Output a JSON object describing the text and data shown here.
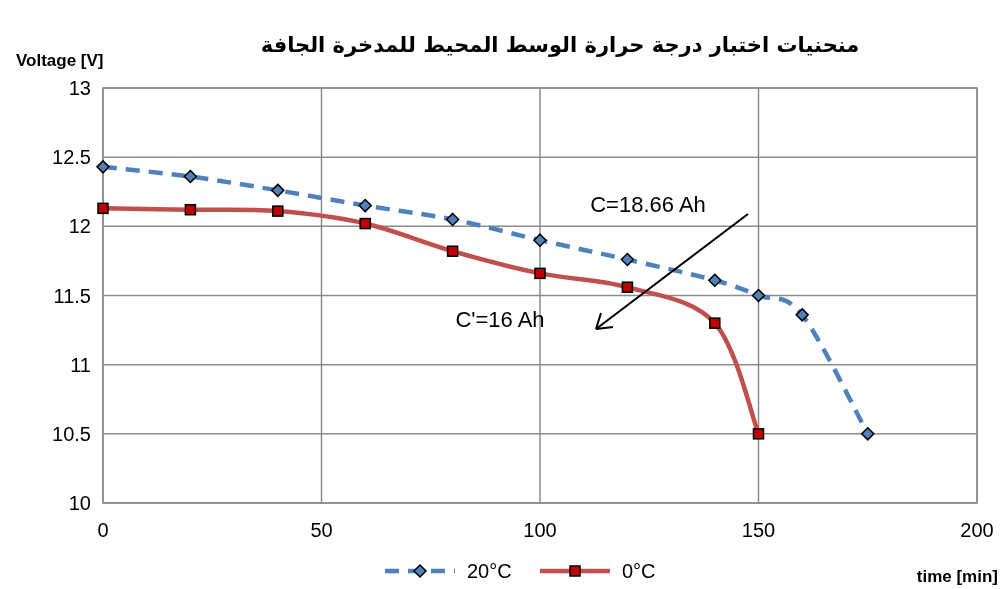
{
  "chart_data": {
    "type": "line",
    "title": "منحنيات اختبار درجة حرارة الوسط المحيط للمدخرة الجافة",
    "xlabel": "time [min]",
    "ylabel": "Voltage [V]",
    "series": [
      {
        "name": "20°C",
        "color": "#4f81bd",
        "marker": "diamond",
        "line_style": "dashed",
        "x": [
          0,
          20,
          40,
          60,
          80,
          100,
          120,
          140,
          150,
          160,
          175
        ],
        "values": [
          12.43,
          12.36,
          12.26,
          12.15,
          12.05,
          11.9,
          11.76,
          11.61,
          11.5,
          11.36,
          10.5
        ]
      },
      {
        "name": "0°C",
        "color": "#c0504d",
        "marker": "square",
        "line_style": "solid",
        "x": [
          0,
          20,
          40,
          60,
          80,
          100,
          120,
          140,
          150
        ],
        "values": [
          12.13,
          12.12,
          12.11,
          12.02,
          11.82,
          11.66,
          11.56,
          11.3,
          10.5
        ]
      }
    ],
    "xlim": [
      0,
      200
    ],
    "xticks": [
      0,
      50,
      100,
      150,
      200
    ],
    "ylim": [
      10,
      13
    ],
    "yticks": [
      10,
      10.5,
      11,
      11.5,
      12,
      12.5,
      13
    ],
    "grid": true,
    "legend": "bottom",
    "annotations": [
      "C=18.66 Ah",
      "C'=16 Ah"
    ]
  }
}
